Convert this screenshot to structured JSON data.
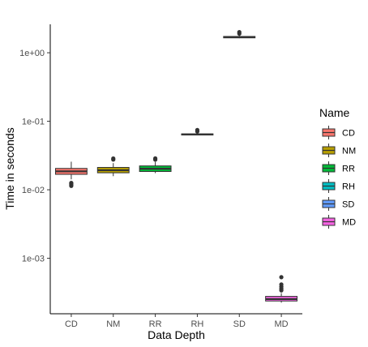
{
  "chart_data": {
    "type": "boxplot",
    "xlabel": "Data Depth",
    "ylabel": "Time in seconds",
    "y_scale": "log10",
    "ylim": [
      0.000155,
      2.6
    ],
    "y_ticks": [
      0.001,
      0.01,
      0.1,
      1
    ],
    "y_tick_labels": [
      "1e-03",
      "1e-02",
      "1e-01",
      "1e+00"
    ],
    "categories": [
      "CD",
      "NM",
      "RR",
      "RH",
      "SD",
      "MD"
    ],
    "legend": {
      "title": "Name",
      "placement": "right"
    },
    "grid": false,
    "series": [
      {
        "name": "CD",
        "color": "#F8766D",
        "whisker_low": 0.0142,
        "q1": 0.0168,
        "median": 0.0186,
        "q3": 0.0205,
        "whisker_high": 0.0257,
        "outliers": [
          0.0114,
          0.0118,
          0.0122,
          0.0126
        ]
      },
      {
        "name": "NM",
        "color": "#B79F00",
        "whisker_low": 0.0158,
        "q1": 0.0177,
        "median": 0.0193,
        "q3": 0.0212,
        "whisker_high": 0.0245,
        "outliers": [
          0.0276,
          0.0286
        ]
      },
      {
        "name": "RR",
        "color": "#00BA38",
        "whisker_low": 0.0175,
        "q1": 0.0185,
        "median": 0.0203,
        "q3": 0.0223,
        "whisker_high": 0.0255,
        "outliers": [
          0.0275,
          0.0287
        ]
      },
      {
        "name": "RH",
        "color": "#00BFC4",
        "whisker_low": 0.0625,
        "q1": 0.063,
        "median": 0.0642,
        "q3": 0.0655,
        "whisker_high": 0.0665,
        "outliers": [
          0.071,
          0.0745
        ]
      },
      {
        "name": "SD",
        "color": "#619CFF",
        "whisker_low": 1.63,
        "q1": 1.65,
        "median": 1.69,
        "q3": 1.73,
        "whisker_high": 1.78,
        "outliers": [
          1.9,
          2.0
        ]
      },
      {
        "name": "MD",
        "color": "#F564E3",
        "whisker_low": 0.000225,
        "q1": 0.000238,
        "median": 0.000254,
        "q3": 0.000278,
        "whisker_high": 0.00031,
        "outliers": [
          0.00034,
          0.00036,
          0.000385,
          0.000415,
          0.00053
        ]
      }
    ]
  }
}
